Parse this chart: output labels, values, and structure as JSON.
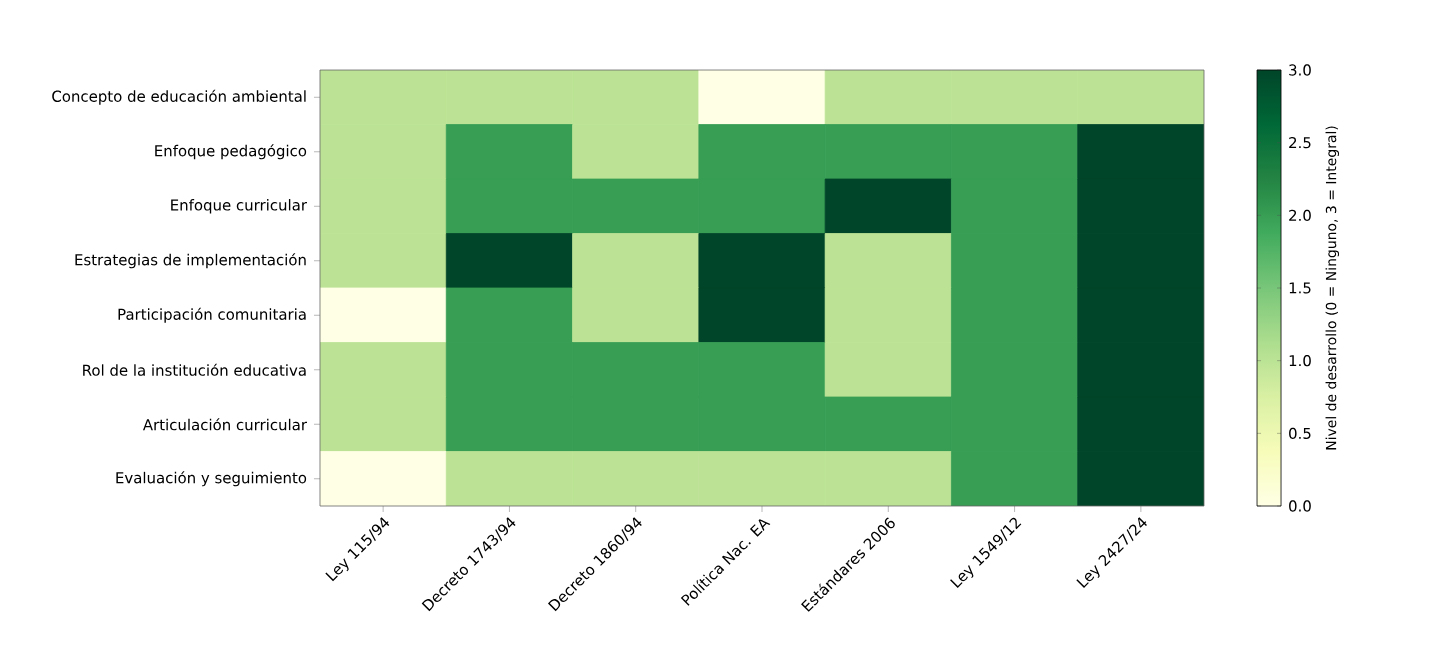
{
  "chart_data": {
    "type": "heatmap",
    "categories": [
      "Ley 115/94",
      "Decreto 1743/94",
      "Decreto 1860/94",
      "Política Nac. EA",
      "Estándares 2006",
      "Ley 1549/12",
      "Ley 2427/24"
    ],
    "y_categories": [
      "Concepto de educación ambiental",
      "Enfoque pedagógico",
      "Enfoque curricular",
      "Estrategias de implementación",
      "Participación comunitaria",
      "Rol de la institución educativa",
      "Articulación curricular",
      "Evaluación y seguimiento"
    ],
    "cells": [
      [
        1,
        1,
        1,
        0,
        1,
        1,
        1
      ],
      [
        1,
        2,
        1,
        2,
        2,
        2,
        3
      ],
      [
        1,
        2,
        2,
        2,
        3,
        2,
        3
      ],
      [
        1,
        3,
        1,
        3,
        1,
        2,
        3
      ],
      [
        0,
        2,
        1,
        3,
        1,
        2,
        3
      ],
      [
        1,
        2,
        2,
        2,
        1,
        2,
        3
      ],
      [
        1,
        2,
        2,
        2,
        2,
        2,
        3
      ],
      [
        0,
        1,
        1,
        1,
        1,
        2,
        3
      ]
    ],
    "clim": [
      0,
      3
    ],
    "cticks": [
      {
        "value": 0,
        "label": "0.0"
      },
      {
        "value": 0.5,
        "label": "0.5"
      },
      {
        "value": 1,
        "label": "1.0"
      },
      {
        "value": 1.5,
        "label": "1.5"
      },
      {
        "value": 2,
        "label": "2.0"
      },
      {
        "value": 2.5,
        "label": "2.5"
      },
      {
        "value": 3,
        "label": "3.0"
      }
    ],
    "clabel": "Nivel de desarrollo (0 = Ninguno, 3 = Integral)"
  }
}
